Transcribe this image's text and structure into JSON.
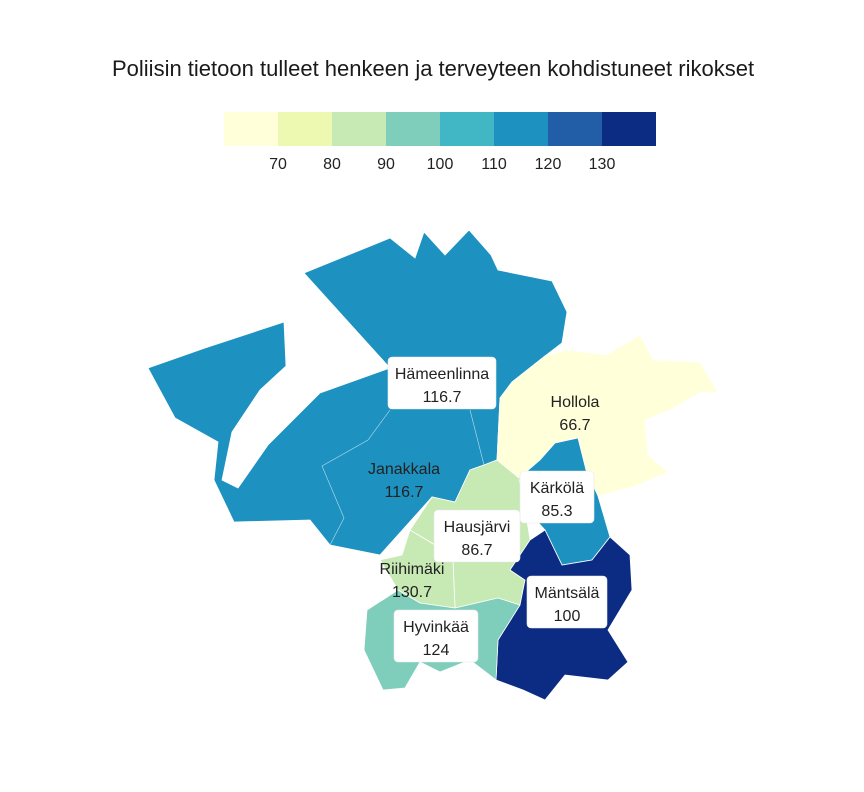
{
  "title": "Poliisin tietoon tulleet henkeen ja terveyteen kohdistuneet rikokset",
  "legend": {
    "colors": [
      "#ffffd9",
      "#edf8b1",
      "#c7e9b4",
      "#7fcdbb",
      "#41b6c4",
      "#1d91c0",
      "#225ea8",
      "#0c2c84"
    ],
    "ticks": [
      "70",
      "80",
      "90",
      "100",
      "110",
      "120",
      "130"
    ]
  },
  "chart_data": {
    "type": "choropleth",
    "title": "Poliisin tietoon tulleet henkeen ja terveyteen kohdistuneet rikokset",
    "scale": {
      "min": 60,
      "max": 140,
      "step": 10
    },
    "regions": [
      {
        "name": "Hämeenlinna",
        "value_label": "116.7",
        "value": 116.7,
        "color": "#1d91c0"
      },
      {
        "name": "Hollola",
        "value_label": "66.7",
        "value": 66.7,
        "color": "#ffffd9"
      },
      {
        "name": "Janakkala",
        "value_label": "116.7",
        "value": 116.7,
        "color": "#1d91c0"
      },
      {
        "name": "Kärkölä",
        "value_label": "85.3",
        "value": 85.3,
        "color": "#c7e9b4"
      },
      {
        "name": "Hausjärvi",
        "value_label": "86.7",
        "value": 86.7,
        "color": "#c7e9b4"
      },
      {
        "name": "Riihimäki",
        "value_label": "130.7",
        "value": 130.7,
        "color": "#0c2c84"
      },
      {
        "name": "Mäntsälä",
        "value_label": "100",
        "value": 100,
        "color": "#7fcdbb"
      },
      {
        "name": "Hyvinkää",
        "value_label": "124",
        "value": 124,
        "color": "#225ea8"
      }
    ]
  }
}
